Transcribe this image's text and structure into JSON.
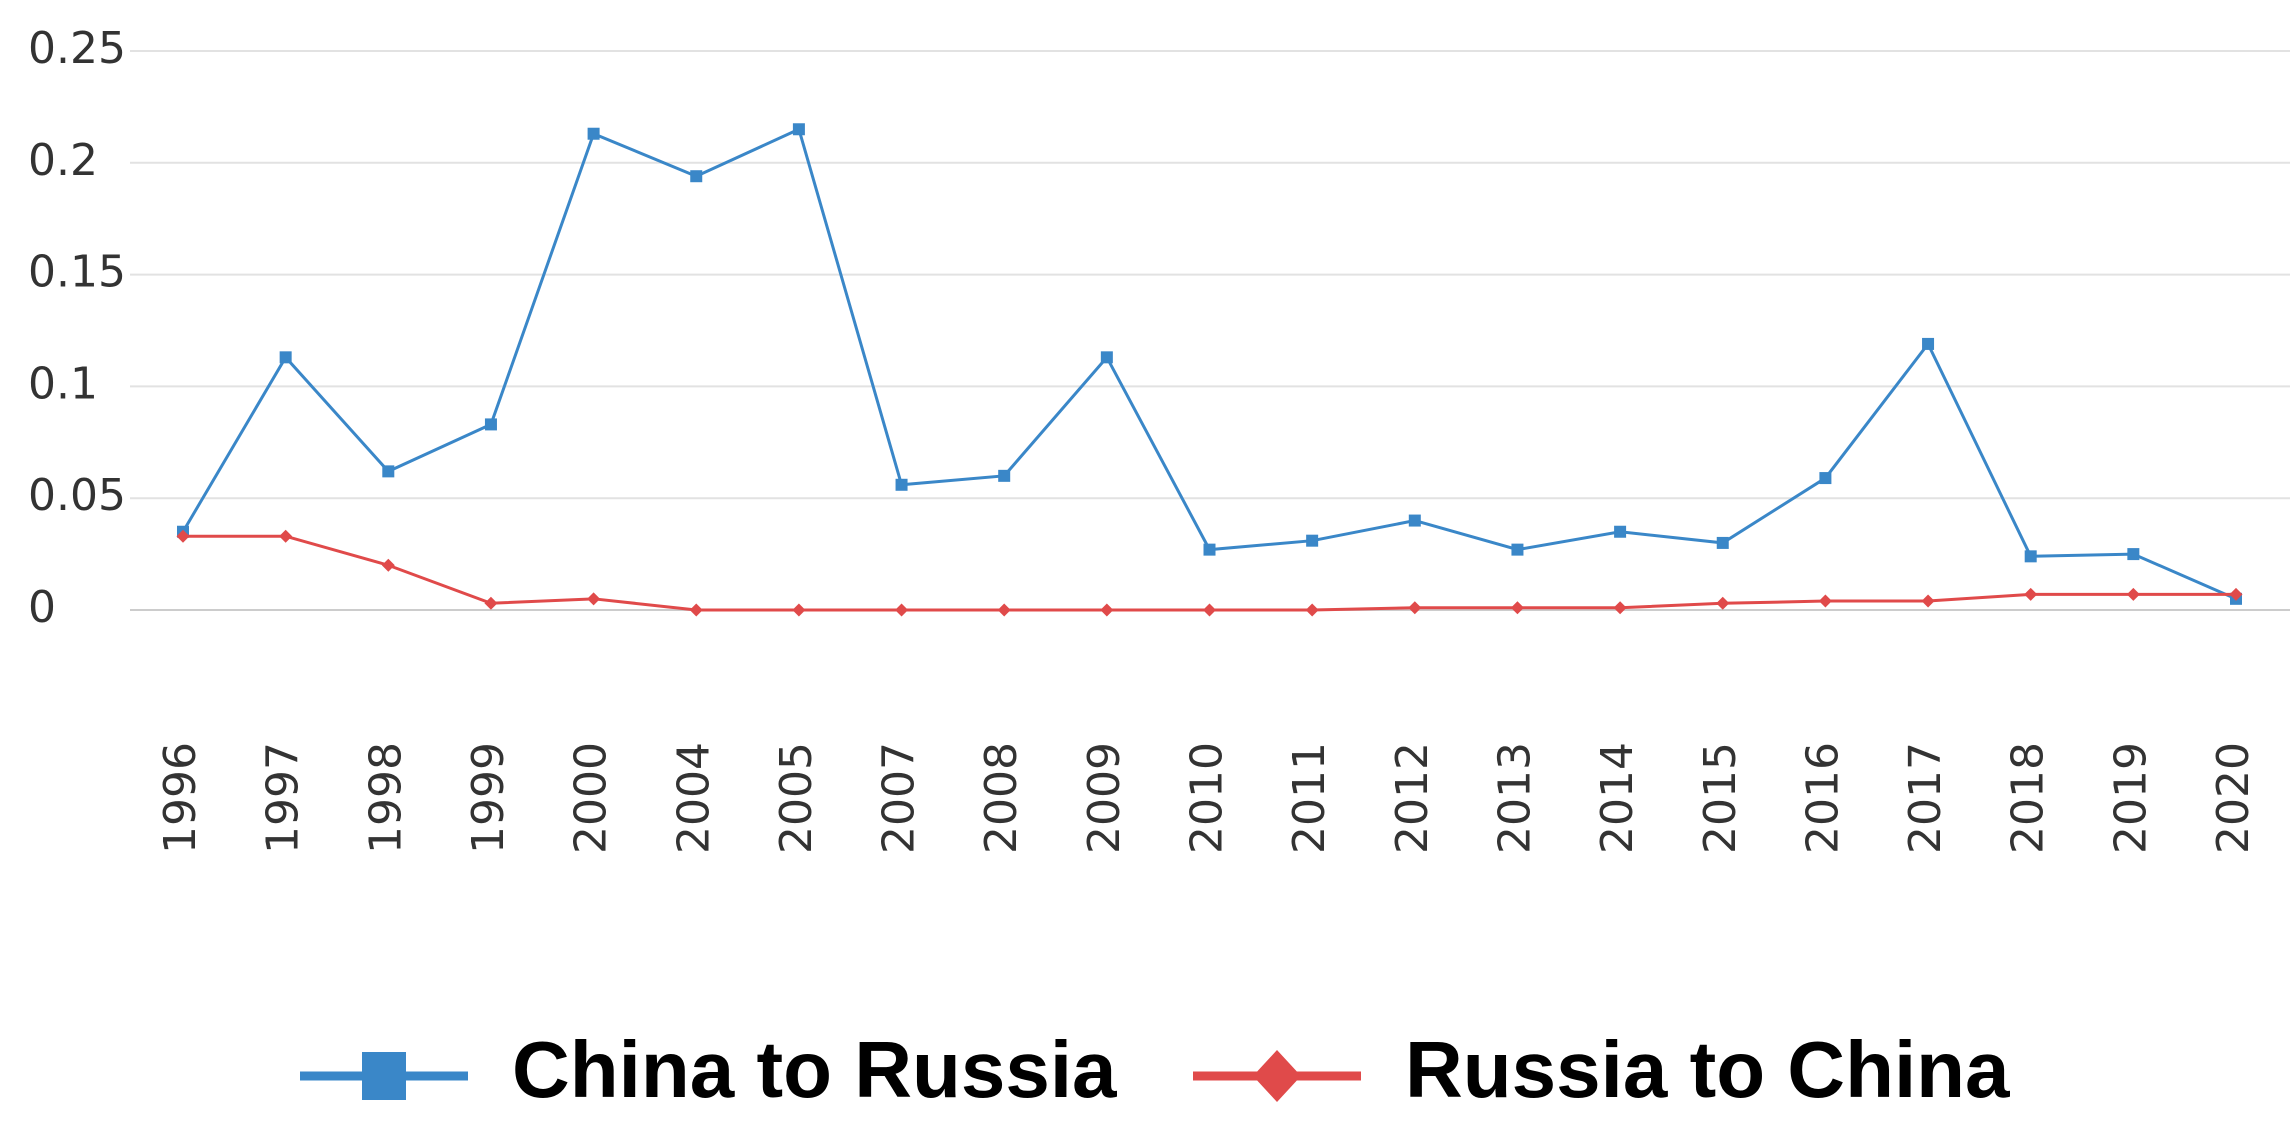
{
  "chart_data": {
    "type": "line",
    "categories": [
      "1996",
      "1997",
      "1998",
      "1999",
      "2000",
      "2004",
      "2005",
      "2007",
      "2008",
      "2009",
      "2010",
      "2011",
      "2012",
      "2013",
      "2014",
      "2015",
      "2016",
      "2017",
      "2018",
      "2019",
      "2020"
    ],
    "series": [
      {
        "name": "China to Russia",
        "color": "#3a87c8",
        "marker": "square",
        "values": [
          0.035,
          0.113,
          0.062,
          0.083,
          0.213,
          0.194,
          0.215,
          0.056,
          0.06,
          0.113,
          0.027,
          0.031,
          0.04,
          0.027,
          0.035,
          0.03,
          0.059,
          0.119,
          0.024,
          0.025,
          0.005
        ]
      },
      {
        "name": "Russia to China",
        "color": "#e04a4a",
        "marker": "diamond",
        "values": [
          0.033,
          0.033,
          0.02,
          0.003,
          0.005,
          0,
          0,
          0,
          0,
          0,
          0,
          0,
          0.001,
          0.001,
          0.001,
          0.003,
          0.004,
          0.004,
          0.007,
          0.007,
          0.007
        ]
      }
    ],
    "ylim": [
      0,
      0.25
    ],
    "yticks": [
      0,
      0.05,
      0.1,
      0.15,
      0.2,
      0.25
    ],
    "grid": true,
    "legend": "bottom"
  }
}
